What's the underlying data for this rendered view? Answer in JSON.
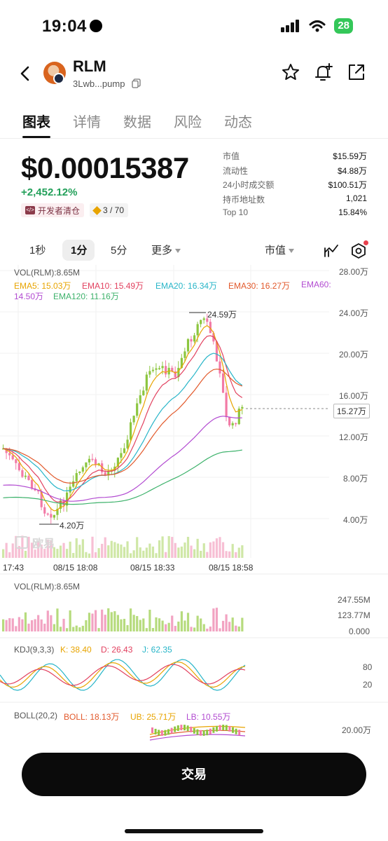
{
  "status_bar": {
    "time": "19:04",
    "battery": "28"
  },
  "header": {
    "name": "RLM",
    "address": "3Lwb...pump"
  },
  "tabs": [
    "图表",
    "详情",
    "数据",
    "风险",
    "动态"
  ],
  "token": {
    "price": "$0.00015387",
    "change": "+2,452.12%",
    "dev_badge": "开发者清仓",
    "score_badge": "3 / 70"
  },
  "stats": [
    {
      "label": "市值",
      "value": "$15.59万"
    },
    {
      "label": "流动性",
      "value": "$4.88万"
    },
    {
      "label": "24小时成交额",
      "value": "$100.51万"
    },
    {
      "label": "持币地址数",
      "value": "1,021"
    },
    {
      "label": "Top 10",
      "value": "15.84%"
    }
  ],
  "timeframes": {
    "items": [
      "1秒",
      "1分",
      "5分"
    ],
    "active": "1分",
    "more": "更多",
    "metric": "市值"
  },
  "chart": {
    "vol_legend": "VOL(RLM):8.65M",
    "ema": [
      {
        "label": "EMA5: 15.03万",
        "color": "#e8a400"
      },
      {
        "label": "EMA10: 15.49万",
        "color": "#e2415f"
      },
      {
        "label": "EMA20: 16.34万",
        "color": "#27b5c8"
      },
      {
        "label": "EMA30: 16.27万",
        "color": "#e2592b"
      },
      {
        "label": "EMA60: 14.50万",
        "color": "#b24bd1"
      },
      {
        "label": "EMA120: 11.16万",
        "color": "#3db26b"
      }
    ],
    "y_ticks": [
      "28.00万",
      "24.00万",
      "20.00万",
      "16.00万",
      "12.00万",
      "8.00万",
      "4.00万"
    ],
    "current_label": "15.27万",
    "high_label": "24.59万",
    "low_label": "4.20万",
    "x_ticks": [
      "17:43",
      "08/15 18:08",
      "08/15 18:33",
      "08/15 18:58"
    ],
    "watermark": "欧易",
    "vol_ticks": [
      "247.55M",
      "123.77M",
      "0.000"
    ],
    "kdj": {
      "title": "KDJ(9,3,3)",
      "k": "K: 38.40",
      "d": "D: 26.43",
      "j": "J: 62.35",
      "ticks": [
        "80",
        "20"
      ]
    },
    "boll": {
      "title": "BOLL(20,2)",
      "mid": "BOLL: 18.13万",
      "ub": "UB: 25.71万",
      "lb": "LB: 10.55万",
      "tick": "20.00万"
    }
  },
  "trade_button": "交易"
}
